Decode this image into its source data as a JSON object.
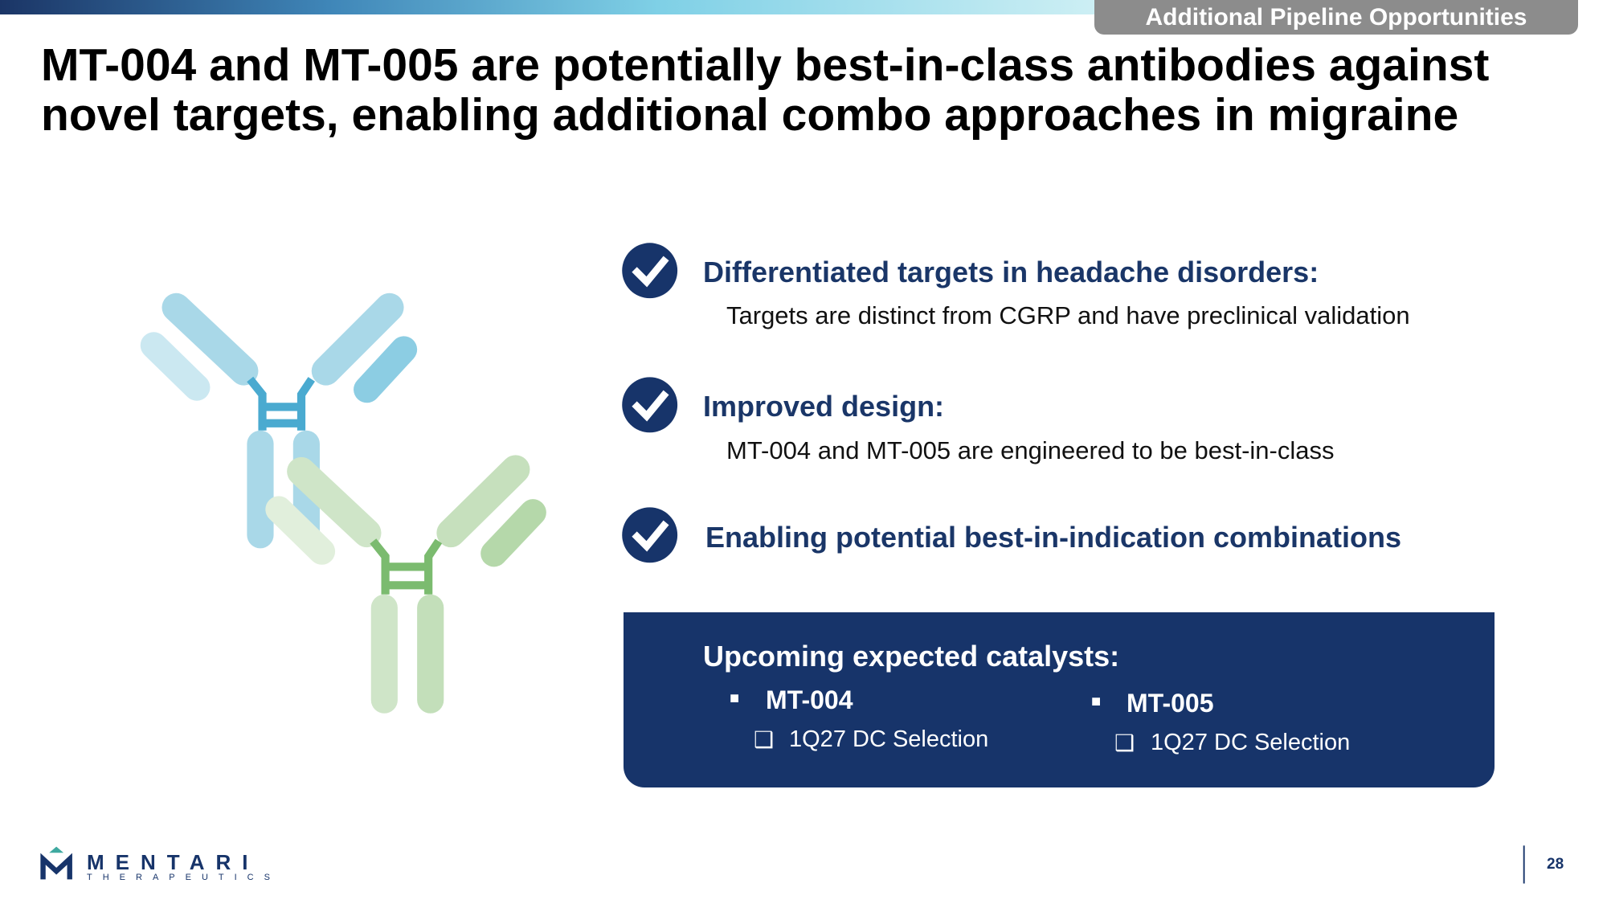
{
  "header": {
    "section_tag": "Additional Pipeline Opportunities",
    "title_lines": [
      "MT-004 and MT-005 are potentially best-in-class antibodies against",
      "novel targets, enabling additional combo approaches in migraine"
    ]
  },
  "points": [
    {
      "heading": "Differentiated targets in headache disorders:",
      "text": "Targets are distinct from CGRP and have preclinical validation"
    },
    {
      "heading": "Improved design:",
      "text": "MT-004 and MT-005 are engineered to be best-in-class"
    },
    {
      "heading": "Enabling potential best-in-indication combinations"
    }
  ],
  "catalysts": {
    "title": "Upcoming expected catalysts:",
    "items": [
      {
        "name": "MT-004",
        "detail": "1Q27 DC Selection"
      },
      {
        "name": "MT-005",
        "detail": "1Q27 DC Selection"
      }
    ]
  },
  "footer": {
    "logo_name": "MENTARI",
    "logo_sub": "THERAPEUTICS",
    "page_number": "28"
  }
}
